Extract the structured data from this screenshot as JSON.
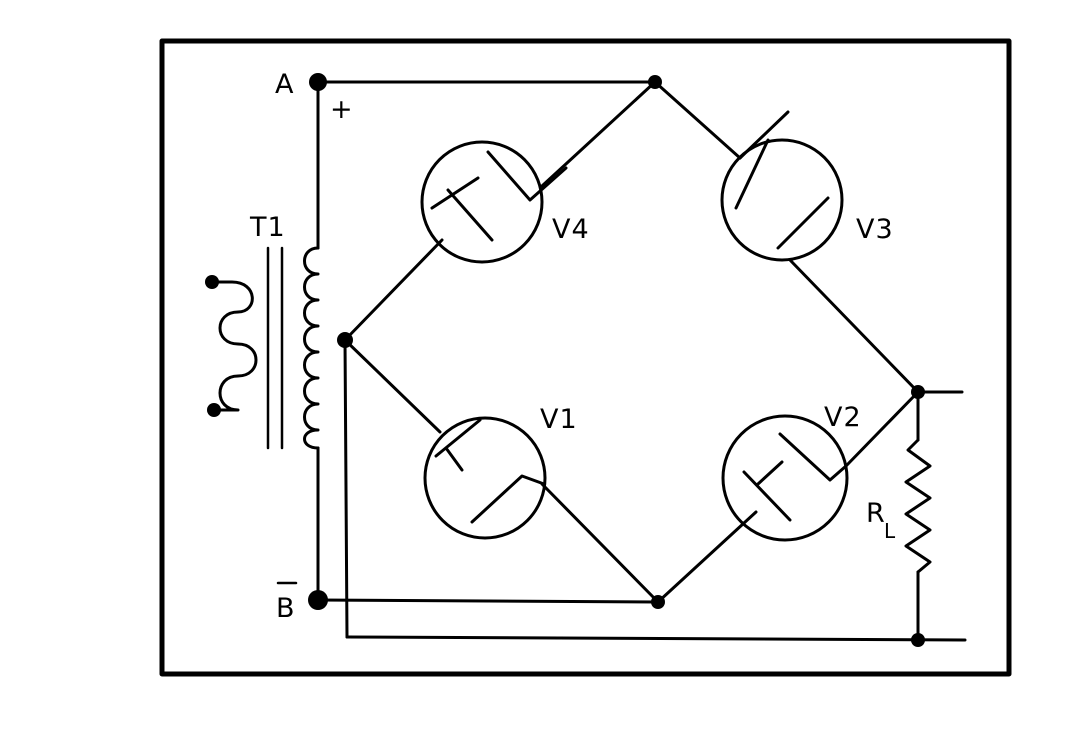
{
  "diagram": {
    "labels": {
      "terminal_a": "A",
      "terminal_b": "B",
      "plus": "+",
      "transformer": "T1",
      "tube_v1": "V1",
      "tube_v2": "V2",
      "tube_v3": "V3",
      "tube_v4": "V4",
      "resistor_main": "R",
      "resistor_sub": "L"
    },
    "colors": {
      "ink": "#000000",
      "paper": "#ffffff"
    }
  }
}
